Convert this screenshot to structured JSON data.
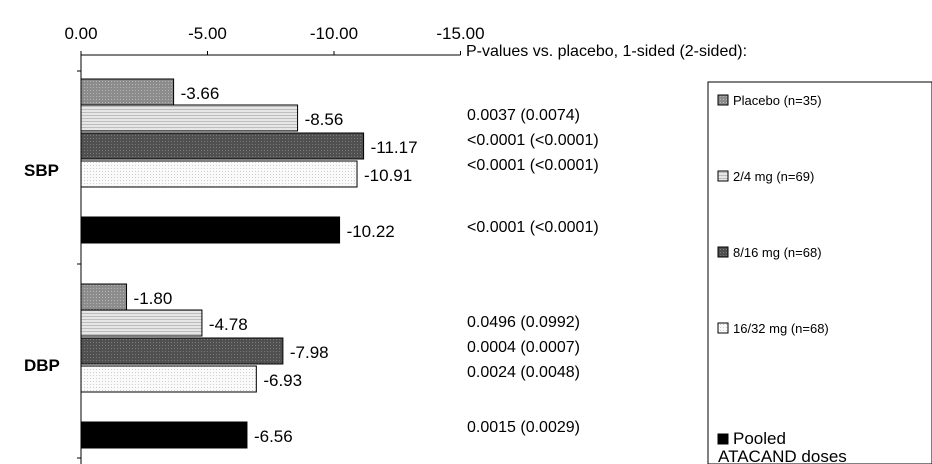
{
  "chart_data": {
    "type": "bar",
    "orientation": "horizontal",
    "xlim": [
      0,
      -15
    ],
    "ticks": [
      0,
      -5,
      -10,
      -15
    ],
    "tick_labels": [
      "0.00",
      "-5.00",
      "-10.00",
      "-15.00"
    ],
    "groups": [
      "SBP",
      "DBP"
    ],
    "series": [
      {
        "name": "Placebo (n=35)",
        "style": "placebo",
        "values": [
          -3.66,
          -1.8
        ],
        "labels": [
          "-3.66",
          "-1.80"
        ]
      },
      {
        "name": "2/4 mg (n=69)",
        "style": "low",
        "values": [
          -8.56,
          -4.78
        ],
        "labels": [
          "-8.56",
          "-4.78"
        ]
      },
      {
        "name": "8/16 mg (n=68)",
        "style": "mid",
        "values": [
          -11.17,
          -7.98
        ],
        "labels": [
          "-11.17",
          "-7.98"
        ]
      },
      {
        "name": "16/32 mg (n=68)",
        "style": "high",
        "values": [
          -10.91,
          -6.93
        ],
        "labels": [
          "-10.91",
          "-6.93"
        ]
      },
      {
        "name": "Pooled ATACAND doses",
        "name_lines": [
          "Pooled",
          "ATACAND doses"
        ],
        "style": "pooled",
        "values": [
          -10.22,
          -6.56
        ],
        "labels": [
          "-10.22",
          "-6.56"
        ]
      }
    ],
    "pvalue_header": "P-values vs. placebo, 1-sided (2-sided):",
    "pvalues": {
      "SBP": [
        "0.0037 (0.0074)",
        "<0.0001 (<0.0001)",
        "<0.0001 (<0.0001)",
        "<0.0001 (<0.0001)"
      ],
      "DBP": [
        "0.0496 (0.0992)",
        "0.0004 (0.0007)",
        "0.0024 (0.0048)",
        "0.0015 (0.0029)"
      ]
    },
    "colors": {
      "placebo": "#8c8c8c",
      "low": "#d4d4d4",
      "mid": "#555555",
      "high": "#f4f4f4",
      "pooled": "#000000"
    }
  }
}
